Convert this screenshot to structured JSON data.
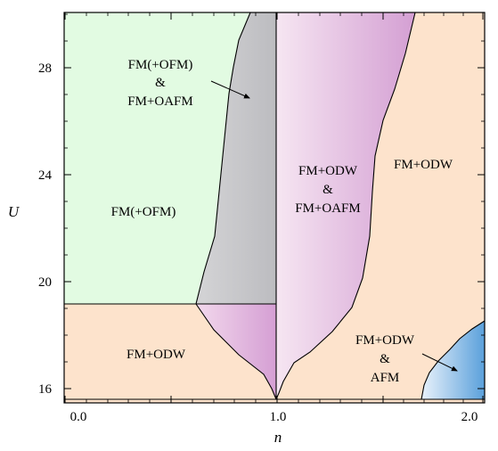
{
  "chart_data": {
    "type": "phase-diagram",
    "xlabel": "n",
    "ylabel": "U",
    "xlim": [
      0.0,
      2.0
    ],
    "ylim": [
      15.5,
      30.0
    ],
    "x_ticks": [
      "0.0",
      "0.5",
      "1.0",
      "1.5",
      "2.0"
    ],
    "y_ticks": [
      "16",
      "20",
      "24",
      "28"
    ],
    "regions": [
      {
        "id": "green",
        "label_lines": [
          "FM(+OFM)"
        ],
        "color": "#e2fbe2"
      },
      {
        "id": "gray",
        "label_lines": [
          "FM(+OFM)",
          "&",
          "FM+OAFM"
        ],
        "color": "#c6c6c9"
      },
      {
        "id": "pink-upper",
        "label_lines": [
          "FM+ODW",
          "&",
          "FM+OAFM"
        ],
        "color": "#d79ed6"
      },
      {
        "id": "peach-right",
        "label_lines": [
          "FM+ODW"
        ],
        "color": "#fde3cc"
      },
      {
        "id": "peach-lower-left",
        "label_lines": [
          "FM+ODW"
        ],
        "color": "#fde3cc"
      },
      {
        "id": "pink-lower",
        "label_lines": [],
        "color": "#d79ed6"
      },
      {
        "id": "blue",
        "label_lines": [
          "FM+ODW",
          "&",
          "AFM"
        ],
        "color": "#6eaedf"
      }
    ]
  }
}
